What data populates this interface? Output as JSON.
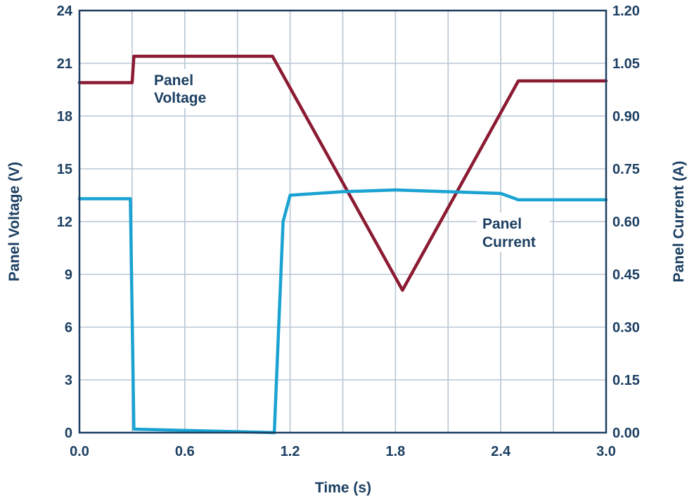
{
  "chart_data": {
    "type": "line",
    "title": "",
    "xlabel": "Time (s)",
    "ylabel_left": "Panel Voltage (V)",
    "ylabel_right": "Panel Current (A)",
    "xlim": [
      0.0,
      3.0
    ],
    "ylim_left": [
      0,
      24
    ],
    "ylim_right": [
      0.0,
      1.2
    ],
    "x_ticks": [
      "0.0",
      "0.6",
      "1.2",
      "1.8",
      "2.4",
      "3.0"
    ],
    "y_left_ticks": [
      "0",
      "3",
      "6",
      "9",
      "12",
      "15",
      "18",
      "21",
      "24"
    ],
    "y_right_ticks": [
      "0.00",
      "0.15",
      "0.30",
      "0.45",
      "0.60",
      "0.75",
      "0.90",
      "1.05",
      "1.20"
    ],
    "grid": true,
    "series": [
      {
        "name": "Panel Voltage",
        "axis": "left",
        "color": "#8b1a32",
        "points": [
          [
            0.0,
            19.9
          ],
          [
            0.3,
            19.9
          ],
          [
            0.31,
            21.4
          ],
          [
            1.1,
            21.4
          ],
          [
            1.84,
            8.1
          ],
          [
            2.5,
            20.0
          ],
          [
            3.0,
            20.0
          ]
        ]
      },
      {
        "name": "Panel Current",
        "axis": "right",
        "color": "#1aa3d2",
        "points": [
          [
            0.0,
            0.665
          ],
          [
            0.29,
            0.665
          ],
          [
            0.31,
            0.01
          ],
          [
            1.11,
            0.0
          ],
          [
            1.16,
            0.6
          ],
          [
            1.2,
            0.675
          ],
          [
            1.5,
            0.685
          ],
          [
            1.8,
            0.69
          ],
          [
            2.4,
            0.68
          ],
          [
            2.5,
            0.662
          ],
          [
            3.0,
            0.662
          ]
        ]
      }
    ],
    "annotations": {
      "voltage_line1": "Panel",
      "voltage_line2": "Voltage",
      "current_line1": "Panel",
      "current_line2": "Current"
    }
  }
}
